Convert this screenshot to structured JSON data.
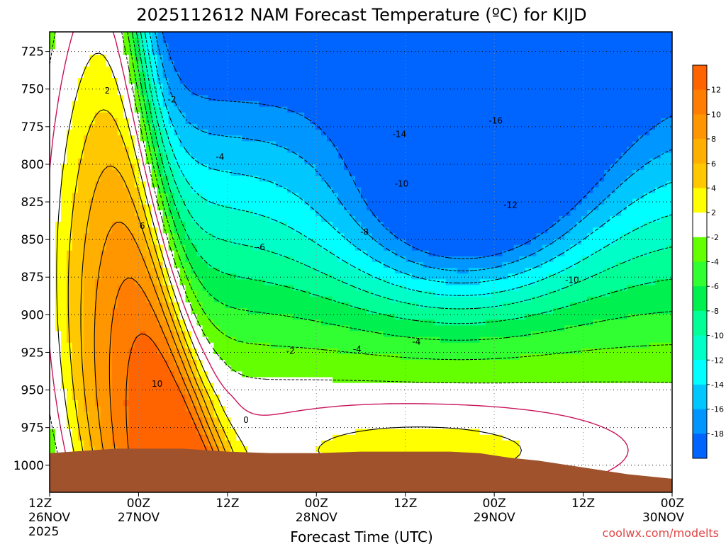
{
  "chart_data": {
    "type": "heatmap",
    "title": "2025112612 NAM Forecast Temperature (ºC) for KIJD",
    "xlabel": "Forecast Time (UTC)",
    "ylabel": "",
    "credit": "coolwx.com/modelts",
    "x_ticks": [
      {
        "hour": 0,
        "line1": "12Z",
        "line2": "26NOV",
        "line3": "2025"
      },
      {
        "hour": 12,
        "line1": "00Z",
        "line2": "27NOV",
        "line3": ""
      },
      {
        "hour": 24,
        "line1": "12Z",
        "line2": "",
        "line3": ""
      },
      {
        "hour": 36,
        "line1": "00Z",
        "line2": "28NOV",
        "line3": ""
      },
      {
        "hour": 48,
        "line1": "12Z",
        "line2": "",
        "line3": ""
      },
      {
        "hour": 60,
        "line1": "00Z",
        "line2": "29NOV",
        "line3": ""
      },
      {
        "hour": 72,
        "line1": "12Z",
        "line2": "",
        "line3": ""
      },
      {
        "hour": 84,
        "line1": "00Z",
        "line2": "30NOV",
        "line3": ""
      }
    ],
    "xlim": [
      0,
      84
    ],
    "y_ticks": [
      725,
      750,
      775,
      800,
      825,
      850,
      875,
      900,
      925,
      950,
      975,
      1000
    ],
    "ylim": [
      712,
      1018
    ],
    "y_inverted": true,
    "grid": true,
    "colorbar": {
      "ticks": [
        12,
        10,
        8,
        6,
        4,
        2,
        -2,
        -4,
        -6,
        -8,
        -10,
        -12,
        -14,
        -16,
        -18
      ],
      "bands": [
        {
          "from": 14,
          "to": 12,
          "color": "#ff6400"
        },
        {
          "from": 12,
          "to": 10,
          "color": "#ff7d00"
        },
        {
          "from": 10,
          "to": 8,
          "color": "#ff9600"
        },
        {
          "from": 8,
          "to": 6,
          "color": "#ffaf00"
        },
        {
          "from": 6,
          "to": 4,
          "color": "#ffc800"
        },
        {
          "from": 4,
          "to": 2,
          "color": "#ffff00"
        },
        {
          "from": 2,
          "to": -2,
          "color": "#ffffff"
        },
        {
          "from": -2,
          "to": -4,
          "color": "#64ff00"
        },
        {
          "from": -4,
          "to": -6,
          "color": "#32ff32"
        },
        {
          "from": -6,
          "to": -8,
          "color": "#00f050"
        },
        {
          "from": -8,
          "to": -10,
          "color": "#00ff96"
        },
        {
          "from": -10,
          "to": -12,
          "color": "#00ffc8"
        },
        {
          "from": -12,
          "to": -14,
          "color": "#00ffff"
        },
        {
          "from": -14,
          "to": -16,
          "color": "#00c8ff"
        },
        {
          "from": -16,
          "to": -18,
          "color": "#0096ff"
        },
        {
          "from": -18,
          "to": -20,
          "color": "#0064ff"
        }
      ]
    },
    "terrain_color": "#a0522d",
    "zero_contour_color": "#c8145a",
    "contour_labels": [
      {
        "text": "2",
        "hour": 7.8,
        "p": 751
      },
      {
        "text": "-2",
        "hour": 16.5,
        "p": 757
      },
      {
        "text": "-4",
        "hour": 23,
        "p": 795
      },
      {
        "text": "6",
        "hour": 12.5,
        "p": 841
      },
      {
        "text": "10",
        "hour": 14.5,
        "p": 946
      },
      {
        "text": "-6",
        "hour": 28.5,
        "p": 855
      },
      {
        "text": "0",
        "hour": 26.5,
        "p": 970
      },
      {
        "text": "-2",
        "hour": 32.5,
        "p": 924
      },
      {
        "text": "-4",
        "hour": 41.5,
        "p": 923
      },
      {
        "text": "-4",
        "hour": 49.5,
        "p": 918
      },
      {
        "text": "-8",
        "hour": 42.5,
        "p": 845
      },
      {
        "text": "-10",
        "hour": 47.5,
        "p": 813
      },
      {
        "text": "-14",
        "hour": 47.2,
        "p": 780
      },
      {
        "text": "-16",
        "hour": 60.2,
        "p": 771
      },
      {
        "text": "-12",
        "hour": 62.2,
        "p": 827
      },
      {
        "text": "-10",
        "hour": 70.5,
        "p": 877
      }
    ]
  }
}
